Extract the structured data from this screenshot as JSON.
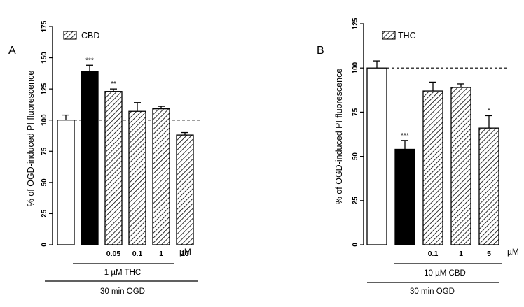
{
  "chart_data": [
    {
      "panel": "A",
      "type": "bar",
      "ylabel": "% of OGD-induced PI fluorescence",
      "ylim": [
        0,
        175
      ],
      "yticks": [
        0,
        25,
        50,
        75,
        100,
        125,
        150,
        175
      ],
      "reference_line": 100,
      "legend": "CBD",
      "unit": "µM",
      "categories": [
        "",
        "",
        "0.05",
        "0.1",
        "1",
        "10"
      ],
      "bars": [
        {
          "value": 100,
          "err": 4,
          "fill": "white",
          "sig": ""
        },
        {
          "value": 139,
          "err": 5,
          "fill": "black",
          "sig": "***"
        },
        {
          "value": 123,
          "err": 2,
          "fill": "hatch",
          "sig": "**"
        },
        {
          "value": 107,
          "err": 7,
          "fill": "hatch",
          "sig": ""
        },
        {
          "value": 109,
          "err": 2,
          "fill": "hatch",
          "sig": ""
        },
        {
          "value": 88,
          "err": 2,
          "fill": "hatch",
          "sig": ""
        }
      ],
      "bracket1": "1 µM THC",
      "bracket2": "30 min OGD"
    },
    {
      "panel": "B",
      "type": "bar",
      "ylabel": "% of OGD-induced PI fluorescence",
      "ylim": [
        0,
        125
      ],
      "yticks": [
        0,
        25,
        50,
        75,
        100,
        125
      ],
      "reference_line": 100,
      "legend": "THC",
      "unit": "µM",
      "categories": [
        "",
        "",
        "0.1",
        "1",
        "5"
      ],
      "bars": [
        {
          "value": 100,
          "err": 4,
          "fill": "white",
          "sig": ""
        },
        {
          "value": 54,
          "err": 5,
          "fill": "black",
          "sig": "***"
        },
        {
          "value": 87,
          "err": 5,
          "fill": "hatch",
          "sig": ""
        },
        {
          "value": 89,
          "err": 2,
          "fill": "hatch",
          "sig": ""
        },
        {
          "value": 66,
          "err": 7,
          "fill": "hatch",
          "sig": "*"
        }
      ],
      "bracket1": "10 µM CBD",
      "bracket2": "30 min OGD"
    }
  ]
}
